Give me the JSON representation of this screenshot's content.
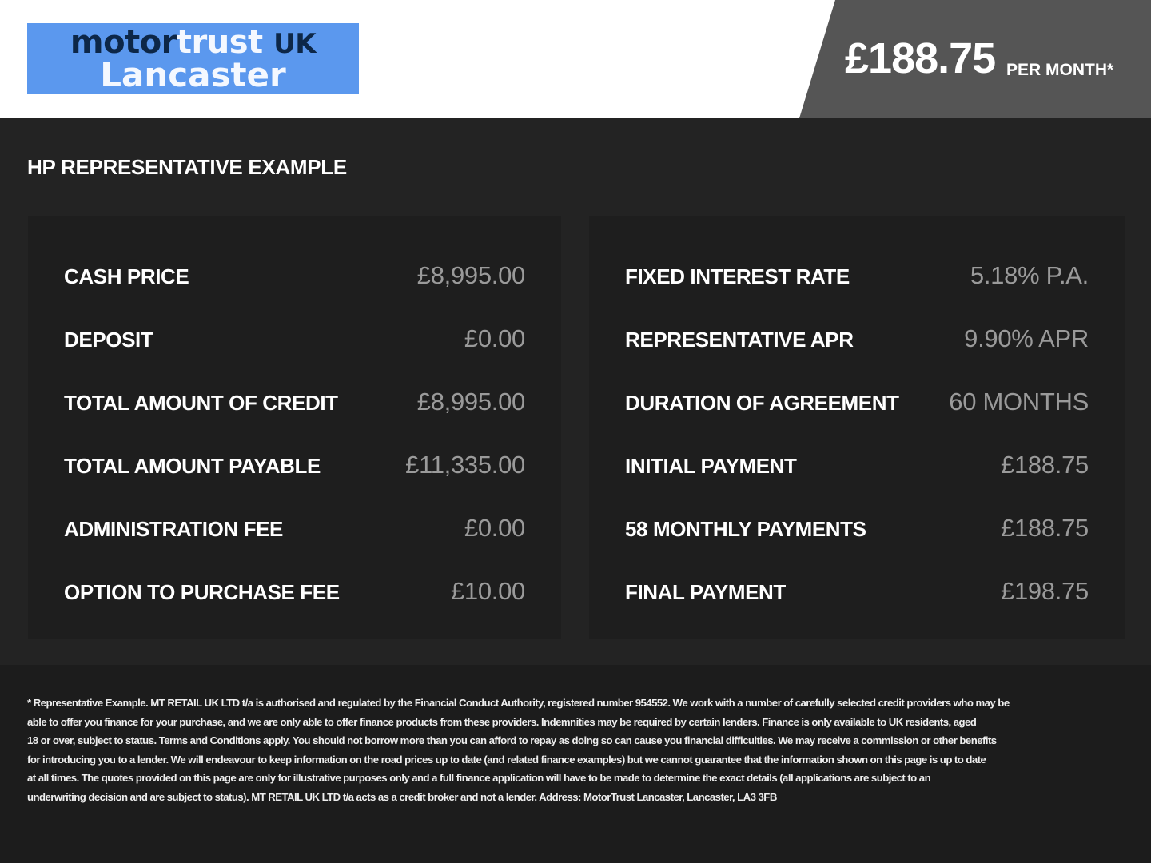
{
  "logo": {
    "line1_dark": "motor",
    "line1_light": "trust",
    "line1_suffix": "UK",
    "line2": "Lancaster"
  },
  "header": {
    "price": "£188.75",
    "per_month": "PER MONTH*"
  },
  "title": "HP REPRESENTATIVE EXAMPLE",
  "left_rows": [
    {
      "label": "CASH PRICE",
      "value": "£8,995.00"
    },
    {
      "label": "DEPOSIT",
      "value": "£0.00"
    },
    {
      "label": "TOTAL AMOUNT OF CREDIT",
      "value": "£8,995.00"
    },
    {
      "label": "TOTAL AMOUNT PAYABLE",
      "value": "£11,335.00"
    },
    {
      "label": "ADMINISTRATION FEE",
      "value": "£0.00"
    },
    {
      "label": "OPTION TO PURCHASE FEE",
      "value": "£10.00"
    }
  ],
  "right_rows": [
    {
      "label": "FIXED INTEREST RATE",
      "value": "5.18% P.A."
    },
    {
      "label": "REPRESENTATIVE APR",
      "value": "9.90% APR"
    },
    {
      "label": "DURATION OF AGREEMENT",
      "value": "60 MONTHS"
    },
    {
      "label": "INITIAL PAYMENT",
      "value": "£188.75"
    },
    {
      "label": "58 MONTHLY PAYMENTS",
      "value": "£188.75"
    },
    {
      "label": "FINAL PAYMENT",
      "value": "£198.75"
    }
  ],
  "disclaimer_lines": [
    "* Representative Example. MT RETAIL UK LTD t/a is authorised and regulated by the Financial Conduct Authority, registered number 954552. We work with a number of carefully selected credit providers who may be",
    "able to offer you finance for your purchase, and we are only able to offer finance products from these providers. Indemnities may be required by certain lenders. Finance is only available to UK residents, aged",
    "18 or over, subject to status. Terms and Conditions apply. You should not borrow more than you can afford to repay as doing so can cause you financial difficulties. We may receive a commission or other benefits",
    "for introducing you to a lender. We will endeavour to keep information on the road prices up to date (and related finance examples) but we cannot guarantee that the information shown on this page is up to date",
    "at all times. The quotes provided on this page are only for illustrative purposes only and a full finance application will have to be made to determine the exact details (all applications are subject to an",
    "underwriting decision and are subject to status). MT RETAIL UK LTD t/a acts as a credit broker and not a lender. Address: MotorTrust Lancaster, Lancaster, LA3 3FB"
  ],
  "colors": {
    "logo_bg": "#5b98ee",
    "logo_dark": "#0d2748",
    "price_bg": "#555555",
    "background": "#232323",
    "value_text": "#9a9a9a"
  }
}
